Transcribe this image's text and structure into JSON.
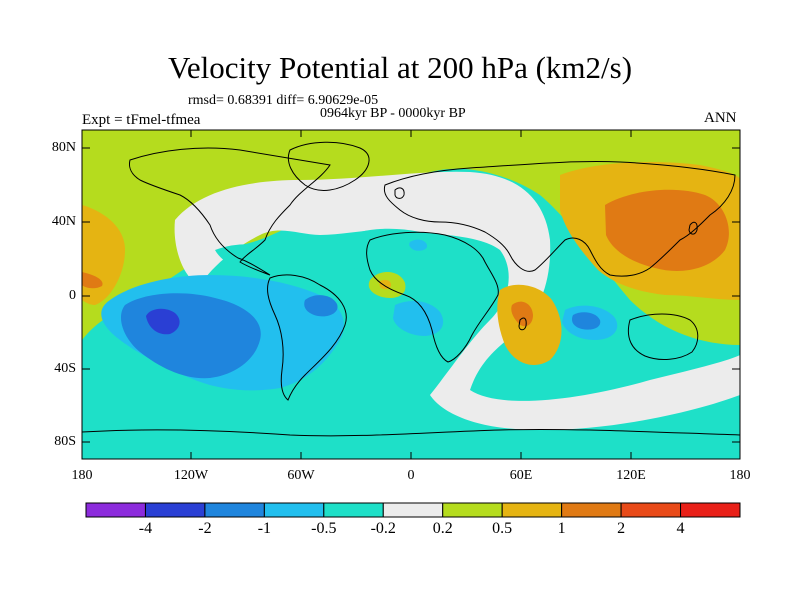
{
  "title": "Velocity Potential at 200 hPa (km2/s)",
  "stats": "rmsd= 0.68391 diff= 6.90629e-05",
  "period": "0964kyr BP - 0000kyr BP",
  "experiment": "Expt = tFmel-tfmea",
  "season": "ANN",
  "lat_labels": [
    "80N",
    "40N",
    "0",
    "40S",
    "80S"
  ],
  "lon_labels": [
    "180",
    "120W",
    "60W",
    "0",
    "60E",
    "120E",
    "180"
  ],
  "colorbar": {
    "labels": [
      "-4",
      "-2",
      "-1",
      "-0.5",
      "-0.2",
      "0.2",
      "0.5",
      "1",
      "2",
      "4"
    ],
    "colors": [
      "#8c2bdc",
      "#2a3fd4",
      "#1f85dd",
      "#22bfee",
      "#1ee0c8",
      "#ececec",
      "#b5dc1e",
      "#e5b412",
      "#e07a14",
      "#e84a18",
      "#e82018"
    ]
  }
}
